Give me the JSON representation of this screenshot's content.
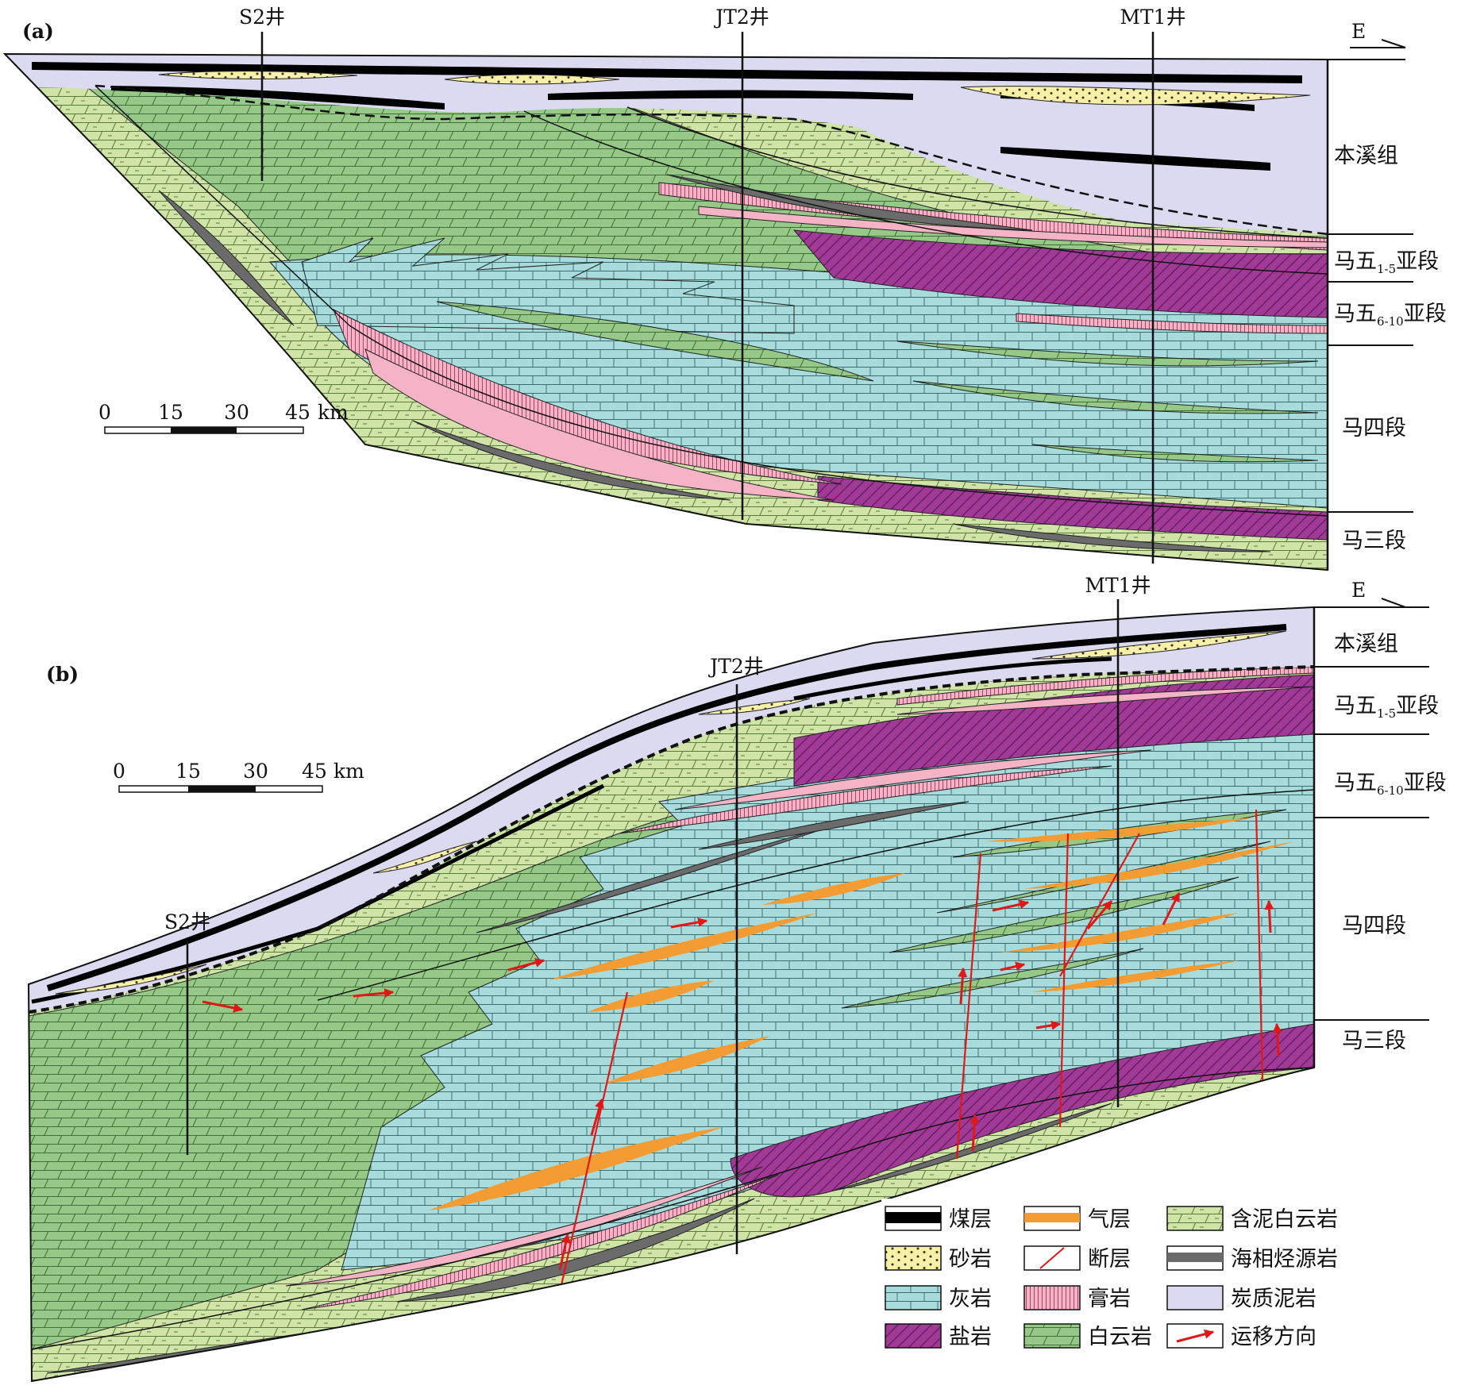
{
  "figure": {
    "panel_a": {
      "label": "(a)",
      "wells": [
        "S2井",
        "JT2井",
        "MT1井"
      ],
      "direction": "E",
      "units": [
        {
          "key": "benxi",
          "text": "本溪组"
        },
        {
          "key": "ma5_1_5",
          "text": "马五",
          "sub": "1-5",
          "suffix": "亚段"
        },
        {
          "key": "ma5_6_10",
          "text": "马五",
          "sub": "6-10",
          "suffix": "亚段"
        },
        {
          "key": "ma4",
          "text": "马四段"
        },
        {
          "key": "ma3",
          "text": "马三段"
        }
      ],
      "scale": {
        "ticks": [
          "0",
          "15",
          "30",
          "45"
        ],
        "unit": "km"
      }
    },
    "panel_b": {
      "label": "(b)",
      "wells": [
        "S2井",
        "JT2井",
        "MT1井"
      ],
      "direction": "E",
      "units": [
        {
          "key": "benxi",
          "text": "本溪组"
        },
        {
          "key": "ma5_1_5",
          "text": "马五",
          "sub": "1-5",
          "suffix": "亚段"
        },
        {
          "key": "ma5_6_10",
          "text": "马五",
          "sub": "6-10",
          "suffix": "亚段"
        },
        {
          "key": "ma4",
          "text": "马四段"
        },
        {
          "key": "ma3",
          "text": "马三段"
        }
      ],
      "scale": {
        "ticks": [
          "0",
          "15",
          "30",
          "45"
        ],
        "unit": "km"
      }
    },
    "legend": [
      {
        "key": "coal",
        "text": "煤层",
        "swatch": "coal"
      },
      {
        "key": "gas",
        "text": "气层",
        "swatch": "gas"
      },
      {
        "key": "muddy_dolomite",
        "text": "含泥白云岩",
        "swatch": "muddy-dolomite"
      },
      {
        "key": "sandstone",
        "text": "砂岩",
        "swatch": "sandstone"
      },
      {
        "key": "fault",
        "text": "断层",
        "swatch": "fault"
      },
      {
        "key": "marine_source",
        "text": "海相烃源岩",
        "swatch": "source-rock"
      },
      {
        "key": "limestone",
        "text": "灰岩",
        "swatch": "limestone"
      },
      {
        "key": "gypsum",
        "text": "膏岩",
        "swatch": "gypsum"
      },
      {
        "key": "carbonaceous_mudstone",
        "text": "炭质泥岩",
        "swatch": "carb-mudstone"
      },
      {
        "key": "salt",
        "text": "盐岩",
        "swatch": "salt"
      },
      {
        "key": "dolomite",
        "text": "白云岩",
        "swatch": "dolomite"
      },
      {
        "key": "migration",
        "text": "运移方向",
        "swatch": "migration"
      }
    ],
    "colors": {
      "limestone": "#a8dcdc",
      "dolomite": "#96c987",
      "muddy_dolomite": "#cfe4a6",
      "salt": "#a03a96",
      "gypsum": "#f5b4c6",
      "carbonaceous_mudstone": "#dcdaf0",
      "sandstone": "#f8f0a6",
      "gas": "#f39c34",
      "coal": "#000000",
      "source_rock": "#6b6b6b",
      "fault": "#e01818"
    }
  }
}
